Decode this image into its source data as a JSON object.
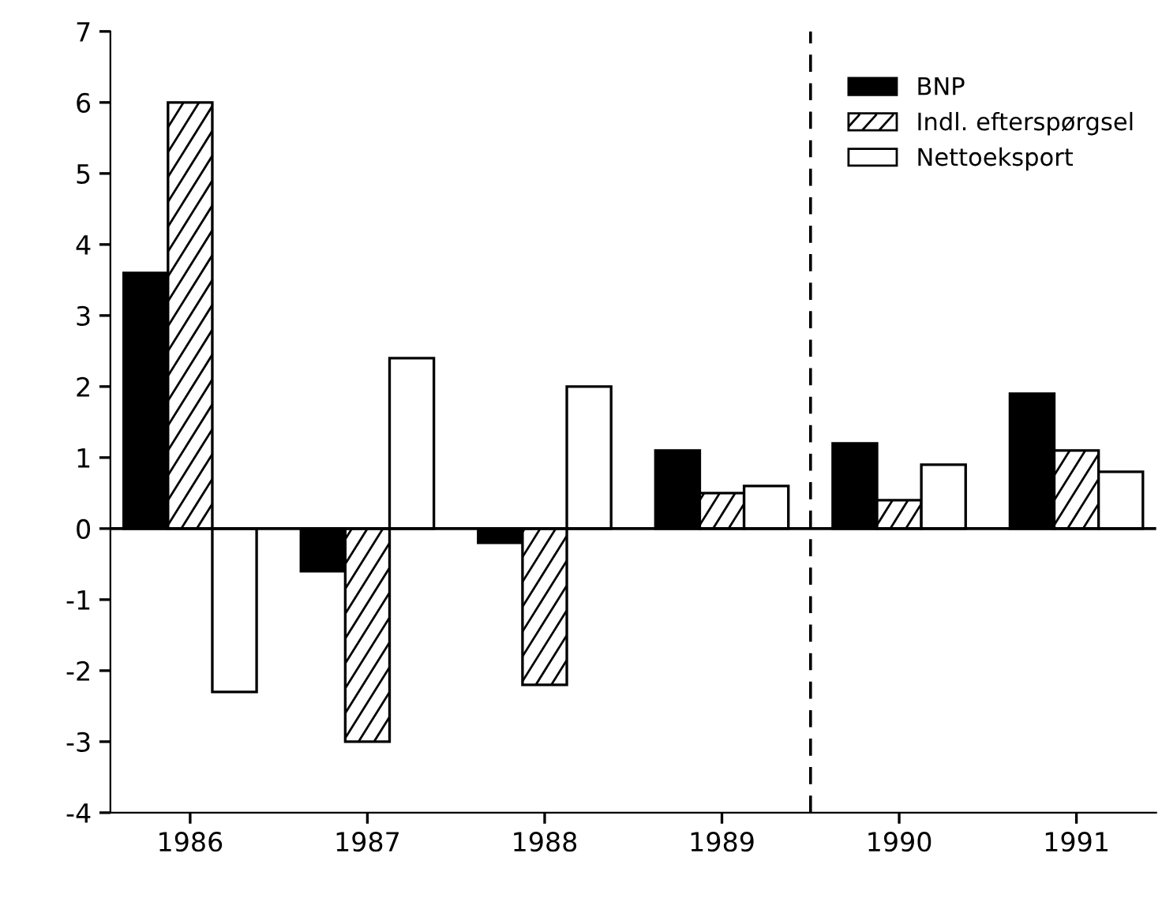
{
  "chart_data": {
    "type": "bar",
    "x": [
      1986,
      1987,
      1988,
      1989,
      1990,
      1991
    ],
    "series": [
      {
        "name": "BNP",
        "color": "#000000",
        "values": [
          3.6,
          -0.6,
          -0.2,
          1.1,
          1.2,
          1.9
        ]
      },
      {
        "name": "Indl. efterspørgsel",
        "color": "#ffffff",
        "values": [
          6.0,
          -3.0,
          -2.2,
          0.5,
          0.4,
          1.1
        ]
      },
      {
        "name": "Nettoeksport",
        "color": "#ffffff",
        "values": [
          -2.3,
          2.4,
          2.0,
          0.6,
          0.9,
          0.8
        ]
      }
    ],
    "xlim": [
      1985.55,
      1991.45
    ],
    "xticks": [
      1986,
      1987,
      1988,
      1989,
      1990,
      1991
    ],
    "ylim": [
      -4,
      7
    ],
    "yticks": [
      -4,
      -3,
      -2,
      -1,
      0,
      1,
      2,
      3,
      4,
      5,
      6,
      7
    ],
    "ref_lines": [
      {
        "axis": "x",
        "value": 1989.5,
        "line_style": "dashed"
      },
      {
        "axis": "y",
        "value": 0,
        "line_style": "solid"
      }
    ],
    "grid": false,
    "legend": "top right"
  }
}
